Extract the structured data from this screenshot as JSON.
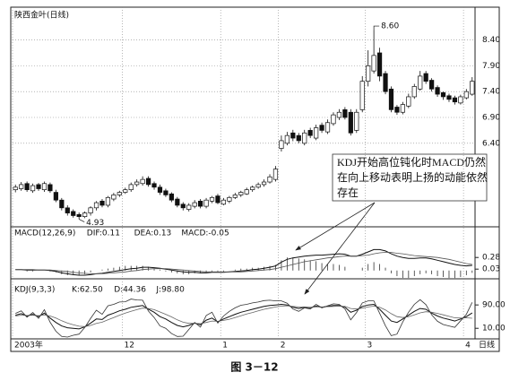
{
  "chart_data": [
    {
      "type": "candlestick",
      "title": "陕西金叶(日线)",
      "categories": [
        "2003年",
        null,
        null,
        null,
        null,
        null,
        null,
        null,
        null,
        null,
        null,
        null,
        null,
        null,
        null,
        null,
        null,
        null,
        null,
        "12",
        null,
        null,
        null,
        null,
        null,
        null,
        null,
        null,
        null,
        null,
        null,
        null,
        null,
        null,
        null,
        null,
        "1",
        null,
        null,
        null,
        null,
        null,
        null,
        null,
        null,
        null,
        "2",
        null,
        null,
        null,
        null,
        null,
        null,
        null,
        null,
        null,
        null,
        null,
        null,
        null,
        null,
        "3",
        null,
        null,
        null,
        null,
        null,
        null,
        null,
        null,
        null,
        null,
        null,
        null,
        null,
        null,
        null,
        null,
        "4",
        null
      ],
      "open": [
        5.5,
        5.52,
        5.62,
        5.48,
        5.6,
        5.5,
        5.6,
        5.45,
        5.3,
        5.15,
        5.08,
        5.02,
        4.98,
        5.05,
        5.15,
        5.28,
        5.2,
        5.32,
        5.4,
        5.45,
        5.5,
        5.6,
        5.62,
        5.72,
        5.62,
        5.55,
        5.48,
        5.42,
        5.32,
        5.22,
        5.12,
        5.18,
        5.28,
        5.18,
        5.28,
        5.38,
        5.22,
        5.28,
        5.35,
        5.4,
        5.42,
        5.5,
        5.55,
        5.6,
        5.65,
        5.7,
        6.3,
        6.4,
        6.6,
        6.55,
        6.4,
        6.65,
        6.5,
        6.75,
        6.62,
        6.78,
        6.9,
        7.05,
        7.0,
        6.65,
        7.05,
        7.6,
        7.8,
        8.15,
        7.75,
        7.45,
        7.1,
        7.0,
        7.12,
        7.3,
        7.45,
        7.75,
        7.62,
        7.48,
        7.38,
        7.32,
        7.28,
        7.18,
        7.28,
        7.35
      ],
      "high": [
        5.6,
        5.65,
        5.66,
        5.62,
        5.63,
        5.66,
        5.64,
        5.5,
        5.34,
        5.2,
        5.12,
        5.06,
        5.08,
        5.18,
        5.28,
        5.32,
        5.38,
        5.44,
        5.48,
        5.54,
        5.64,
        5.7,
        5.76,
        5.76,
        5.66,
        5.6,
        5.52,
        5.45,
        5.36,
        5.26,
        5.24,
        5.3,
        5.32,
        5.34,
        5.38,
        5.42,
        5.34,
        5.38,
        5.44,
        5.48,
        5.54,
        5.58,
        5.64,
        5.7,
        5.8,
        5.96,
        6.55,
        6.62,
        6.66,
        6.6,
        6.66,
        6.7,
        6.76,
        6.8,
        6.86,
        7.0,
        7.06,
        7.1,
        7.06,
        7.06,
        7.7,
        8.2,
        8.6,
        8.25,
        7.8,
        7.5,
        7.14,
        7.2,
        7.36,
        7.55,
        7.8,
        7.8,
        7.66,
        7.52,
        7.4,
        7.36,
        7.32,
        7.34,
        7.45,
        7.68
      ],
      "low": [
        5.45,
        5.48,
        5.46,
        5.44,
        5.48,
        5.46,
        5.44,
        5.26,
        5.1,
        5.0,
        4.96,
        4.93,
        4.95,
        5.0,
        5.1,
        5.16,
        5.16,
        5.28,
        5.36,
        5.42,
        5.46,
        5.56,
        5.58,
        5.56,
        5.5,
        5.4,
        5.36,
        5.26,
        5.16,
        5.1,
        5.08,
        5.14,
        5.14,
        5.14,
        5.24,
        5.22,
        5.2,
        5.24,
        5.32,
        5.36,
        5.4,
        5.46,
        5.52,
        5.56,
        5.62,
        5.66,
        6.24,
        6.36,
        6.44,
        6.4,
        6.36,
        6.5,
        6.46,
        6.6,
        6.58,
        6.74,
        6.85,
        6.86,
        6.55,
        6.6,
        7.0,
        7.5,
        7.75,
        7.6,
        7.35,
        7.0,
        6.95,
        6.96,
        7.08,
        7.26,
        7.42,
        7.55,
        7.4,
        7.3,
        7.24,
        7.2,
        7.15,
        7.15,
        7.25,
        7.32
      ],
      "close": [
        5.55,
        5.6,
        5.5,
        5.58,
        5.52,
        5.62,
        5.48,
        5.3,
        5.15,
        5.05,
        5.0,
        4.98,
        5.05,
        5.15,
        5.25,
        5.2,
        5.35,
        5.4,
        5.45,
        5.5,
        5.6,
        5.65,
        5.7,
        5.6,
        5.55,
        5.45,
        5.4,
        5.3,
        5.2,
        5.15,
        5.2,
        5.25,
        5.18,
        5.3,
        5.35,
        5.25,
        5.3,
        5.35,
        5.4,
        5.45,
        5.5,
        5.55,
        5.6,
        5.65,
        5.75,
        5.9,
        6.45,
        6.55,
        6.5,
        6.45,
        6.6,
        6.55,
        6.7,
        6.65,
        6.8,
        6.95,
        7.0,
        6.9,
        6.6,
        7.0,
        7.6,
        7.9,
        8.1,
        7.7,
        7.4,
        7.05,
        7.0,
        7.15,
        7.3,
        7.5,
        7.7,
        7.6,
        7.45,
        7.35,
        7.3,
        7.25,
        7.2,
        7.3,
        7.4,
        7.6
      ],
      "ylim": [
        4.8,
        9.0
      ],
      "yticks": [
        {
          "value": 8.4,
          "label": "8.40"
        },
        {
          "value": 7.9,
          "label": "7.90"
        },
        {
          "value": 7.4,
          "label": "7.40"
        },
        {
          "value": 6.9,
          "label": "6.90"
        },
        {
          "value": 6.4,
          "label": "6.40"
        }
      ],
      "grid": true,
      "annotations": [
        {
          "value": 8.6,
          "label": "8.60"
        },
        {
          "value": 4.93,
          "label": "4.93"
        }
      ],
      "period_label": "日线",
      "callout": [
        "KDJ开始高位钝化时MACD仍然",
        "在向上移动表明上扬的动能依然",
        "存在"
      ]
    },
    {
      "type": "macd",
      "title": "MACD(12,26,9)",
      "series": [
        {
          "label": "DIF:0.11",
          "color": "#111111",
          "values": [
            0.02,
            0.02,
            0.01,
            0.01,
            0.01,
            0.01,
            0.0,
            -0.02,
            -0.05,
            -0.07,
            -0.09,
            -0.1,
            -0.1,
            -0.09,
            -0.07,
            -0.06,
            -0.04,
            -0.02,
            0.0,
            0.02,
            0.04,
            0.05,
            0.07,
            0.07,
            0.06,
            0.05,
            0.03,
            0.01,
            -0.01,
            -0.03,
            -0.04,
            -0.04,
            -0.05,
            -0.05,
            -0.04,
            -0.04,
            -0.04,
            -0.03,
            -0.02,
            -0.01,
            0.0,
            0.02,
            0.03,
            0.05,
            0.07,
            0.1,
            0.18,
            0.24,
            0.27,
            0.29,
            0.31,
            0.32,
            0.33,
            0.33,
            0.34,
            0.35,
            0.36,
            0.35,
            0.31,
            0.31,
            0.35,
            0.4,
            0.45,
            0.45,
            0.42,
            0.36,
            0.31,
            0.28,
            0.26,
            0.26,
            0.27,
            0.27,
            0.25,
            0.22,
            0.19,
            0.16,
            0.13,
            0.11,
            0.1,
            0.11
          ]
        },
        {
          "label": "DEA:0.13",
          "color": "#555555",
          "values": [
            0.02,
            0.02,
            0.02,
            0.02,
            0.01,
            0.01,
            0.01,
            0.0,
            -0.01,
            -0.02,
            -0.04,
            -0.05,
            -0.06,
            -0.07,
            -0.07,
            -0.07,
            -0.06,
            -0.05,
            -0.04,
            -0.03,
            -0.01,
            0.0,
            0.02,
            0.03,
            0.04,
            0.04,
            0.04,
            0.03,
            0.02,
            0.01,
            0.0,
            -0.01,
            -0.02,
            -0.03,
            -0.03,
            -0.03,
            -0.03,
            -0.03,
            -0.03,
            -0.03,
            -0.02,
            -0.01,
            0.0,
            0.01,
            0.02,
            0.04,
            0.07,
            0.1,
            0.13,
            0.16,
            0.19,
            0.21,
            0.23,
            0.25,
            0.27,
            0.28,
            0.3,
            0.31,
            0.31,
            0.31,
            0.32,
            0.33,
            0.36,
            0.38,
            0.39,
            0.39,
            0.37,
            0.36,
            0.34,
            0.32,
            0.31,
            0.3,
            0.29,
            0.28,
            0.26,
            0.24,
            0.21,
            0.18,
            0.15,
            0.13
          ]
        }
      ],
      "histogram": {
        "label": "MACD:-0.05",
        "color": "#333333",
        "values": [
          0,
          0,
          -0.02,
          -0.02,
          0,
          0,
          -0.02,
          -0.04,
          -0.08,
          -0.1,
          -0.1,
          -0.1,
          -0.08,
          -0.04,
          0,
          0.02,
          0.04,
          0.06,
          0.08,
          0.1,
          0.1,
          0.1,
          0.1,
          0.08,
          0.04,
          0.02,
          -0.02,
          -0.04,
          -0.06,
          -0.08,
          -0.08,
          -0.06,
          -0.06,
          -0.04,
          -0.02,
          -0.02,
          -0.02,
          0,
          0.02,
          0.04,
          0.04,
          0.06,
          0.06,
          0.08,
          0.1,
          0.12,
          0.22,
          0.28,
          0.28,
          0.26,
          0.24,
          0.22,
          0.2,
          0.16,
          0.14,
          0.14,
          0.12,
          0.08,
          0,
          0,
          0.06,
          0.14,
          0.18,
          0.14,
          0.06,
          -0.06,
          -0.12,
          -0.16,
          -0.16,
          -0.12,
          -0.08,
          -0.06,
          -0.08,
          -0.12,
          -0.14,
          -0.16,
          -0.16,
          -0.14,
          -0.1,
          -0.05
        ]
      },
      "ylim": [
        -0.12,
        0.9
      ],
      "yticks": [
        0.28,
        0.03
      ]
    },
    {
      "type": "line",
      "title": "KDJ(9,3,3)",
      "series": [
        {
          "label": "K:62.50",
          "color": "#111111",
          "values": [
            55,
            60,
            52,
            58,
            50,
            62,
            45,
            30,
            18,
            12,
            10,
            8,
            15,
            28,
            42,
            40,
            55,
            62,
            70,
            75,
            82,
            85,
            88,
            75,
            65,
            50,
            42,
            30,
            20,
            15,
            20,
            28,
            22,
            38,
            45,
            32,
            42,
            50,
            58,
            65,
            70,
            75,
            80,
            85,
            88,
            90,
            92,
            90,
            82,
            78,
            82,
            80,
            86,
            82,
            85,
            88,
            88,
            82,
            65,
            72,
            85,
            90,
            92,
            75,
            55,
            35,
            30,
            42,
            55,
            68,
            78,
            75,
            62,
            52,
            45,
            40,
            35,
            42,
            50,
            62.5
          ]
        },
        {
          "label": "D:44.36",
          "color": "#666666",
          "values": [
            52,
            55,
            54,
            55,
            53,
            56,
            52,
            45,
            36,
            28,
            22,
            17,
            16,
            20,
            27,
            31,
            39,
            47,
            55,
            62,
            68,
            74,
            79,
            78,
            74,
            66,
            58,
            49,
            39,
            31,
            27,
            27,
            26,
            30,
            35,
            34,
            37,
            41,
            47,
            53,
            59,
            64,
            70,
            75,
            79,
            83,
            86,
            87,
            85,
            83,
            83,
            82,
            83,
            83,
            84,
            85,
            86,
            85,
            78,
            76,
            79,
            83,
            86,
            82,
            73,
            60,
            50,
            47,
            50,
            56,
            63,
            67,
            65,
            61,
            56,
            51,
            46,
            45,
            46,
            44.36
          ]
        },
        {
          "label": "J:98.80",
          "color": "#333333",
          "values": [
            61,
            70,
            48,
            64,
            44,
            74,
            31,
            0,
            -18,
            -20,
            -14,
            -10,
            13,
            44,
            72,
            58,
            87,
            92,
            100,
            101,
            110,
            107,
            106,
            69,
            47,
            18,
            10,
            -8,
            -18,
            -17,
            6,
            30,
            14,
            54,
            65,
            28,
            52,
            68,
            80,
            89,
            92,
            97,
            100,
            105,
            106,
            104,
            104,
            96,
            76,
            68,
            80,
            76,
            92,
            80,
            87,
            94,
            92,
            76,
            39,
            64,
            97,
            104,
            104,
            61,
            19,
            -15,
            -10,
            32,
            65,
            92,
            108,
            91,
            56,
            34,
            23,
            18,
            13,
            36,
            58,
            98.8
          ]
        }
      ],
      "ylim": [
        -20,
        158
      ],
      "yticks": [
        {
          "value": 90,
          "label": "90.00"
        },
        {
          "value": 10,
          "label": "10.00"
        }
      ]
    }
  ],
  "caption": "图 3－12"
}
